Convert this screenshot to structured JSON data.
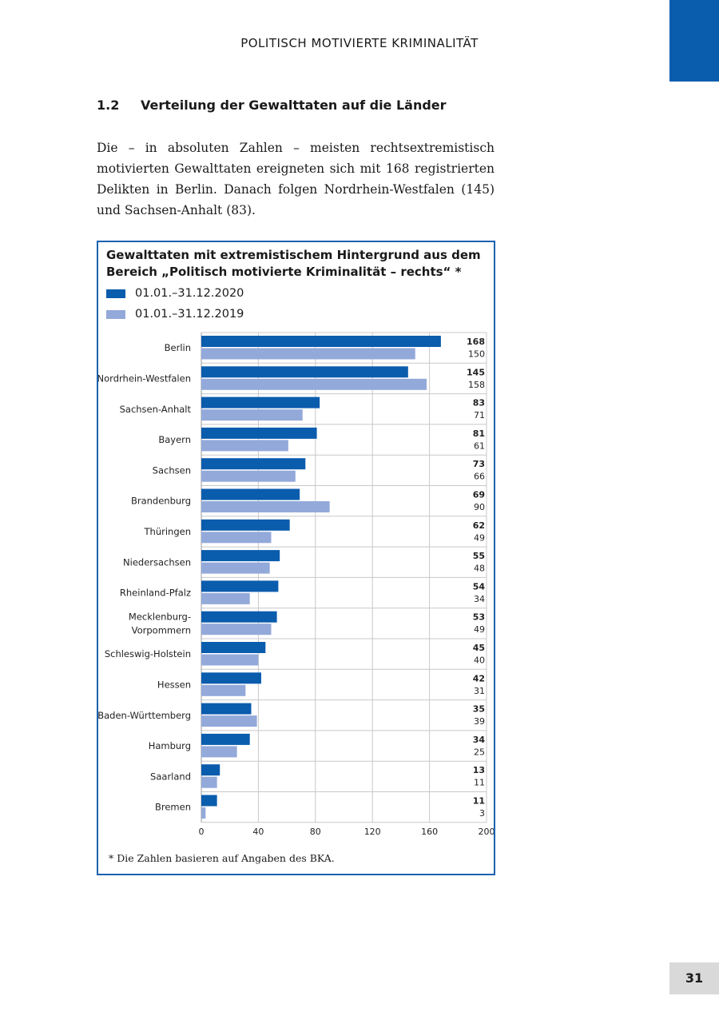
{
  "header": {
    "running_title": "POLITISCH MOTIVIERTE KRIMINALITÄT",
    "page_number": "31"
  },
  "section": {
    "number": "1.2",
    "title": "Verteilung der Gewalttaten auf die Länder"
  },
  "paragraph": "Die – in absoluten Zahlen – meisten rechtsextremistisch motivierten Gewalttaten ereigneten sich mit 168 registrierten Delikten in Berlin. Danach folgen Nordrhein-Westfalen (145) und Sachsen-Anhalt (83).",
  "footnote": "*  Die Zahlen basieren auf Angaben des BKA.",
  "chart_data": {
    "type": "bar",
    "orientation": "horizontal",
    "title": "Gewalttaten mit extremistischem Hintergrund aus dem Bereich „Politisch motivierte Kriminalität – rechts“ *",
    "categories": [
      "Berlin",
      "Nordrhein-Westfalen",
      "Sachsen-Anhalt",
      "Bayern",
      "Sachsen",
      "Brandenburg",
      "Thüringen",
      "Niedersachsen",
      "Rheinland-Pfalz",
      "Mecklenburg-\nVorpommern",
      "Schleswig-Holstein",
      "Hessen",
      "Baden-Württemberg",
      "Hamburg",
      "Saarland",
      "Bremen"
    ],
    "series": [
      {
        "name": "01.01.–31.12.2020",
        "color": "#0a5cad",
        "values": [
          168,
          145,
          83,
          81,
          73,
          69,
          62,
          55,
          54,
          53,
          45,
          42,
          35,
          34,
          13,
          11
        ]
      },
      {
        "name": "01.01.–31.12.2019",
        "color": "#93a9da",
        "values": [
          150,
          158,
          71,
          61,
          66,
          90,
          49,
          48,
          34,
          49,
          40,
          31,
          39,
          25,
          11,
          3
        ]
      }
    ],
    "xlim": [
      0,
      200
    ],
    "xticks": [
      0,
      40,
      80,
      120,
      160,
      200
    ],
    "grid": true,
    "legend": "top-left"
  }
}
